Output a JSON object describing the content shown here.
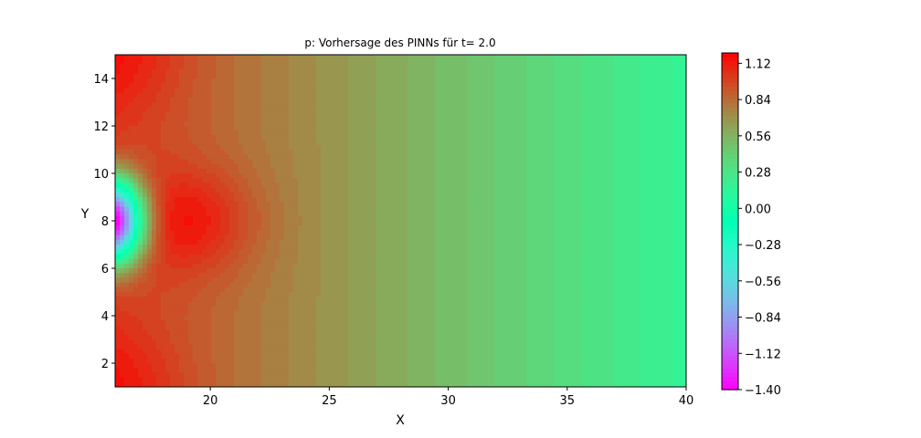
{
  "chart_data": {
    "type": "heatmap",
    "title": "p: Vorhersage des PINNs für t= 2.0",
    "xlabel": "X",
    "ylabel": "Y",
    "xlim": [
      16,
      40
    ],
    "ylim": [
      1,
      15
    ],
    "x_ticks": [
      20,
      25,
      30,
      35,
      40
    ],
    "y_ticks": [
      2,
      4,
      6,
      8,
      10,
      12,
      14
    ],
    "colormap": "rainbow",
    "colorbar": {
      "range": [
        -1.4,
        1.2
      ],
      "ticks": [
        1.12,
        0.84,
        0.56,
        0.28,
        0.0,
        -0.28,
        -0.56,
        -0.84,
        -1.12,
        -1.4
      ],
      "tick_labels": [
        "1.12",
        "0.84",
        "0.56",
        "0.28",
        "0.00",
        "−0.28",
        "−0.56",
        "−0.84",
        "−1.12",
        "−1.40"
      ]
    },
    "field_features": [
      {
        "feature": "minimum near inlet",
        "x": 16.2,
        "y": 8.0,
        "value": -1.4
      },
      {
        "feature": "maximum behind obstacle",
        "x": 19.2,
        "y": 8.0,
        "value": 1.1
      },
      {
        "feature": "corner maxima",
        "x": 16.3,
        "y": 14.8,
        "value": 1.1
      },
      {
        "feature": "corner maxima",
        "x": 16.3,
        "y": 1.2,
        "value": 1.1
      },
      {
        "feature": "far field outlet",
        "x": 40.0,
        "y": 8.0,
        "value": 0.08
      }
    ]
  }
}
